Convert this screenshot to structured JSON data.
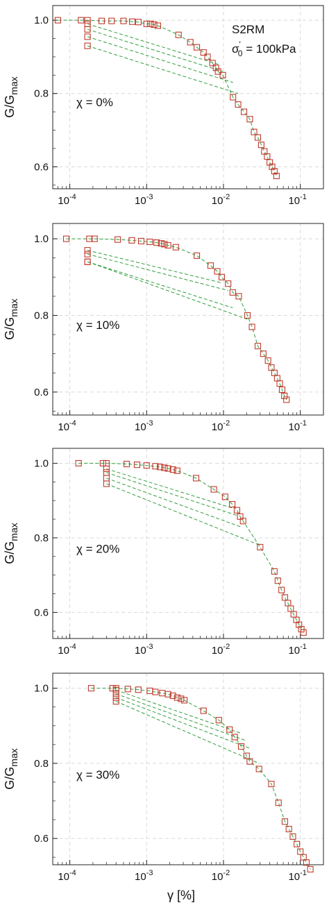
{
  "chart_data": [
    {
      "type": "scatter",
      "ylabel": "G/G",
      "ylabel_sub": "max",
      "xscale": "log",
      "xlim": [
        6e-05,
        0.2
      ],
      "ylim": [
        0.54,
        1.04
      ],
      "xticks": [
        "10",
        "10",
        "10",
        "10"
      ],
      "xtick_exps": [
        "-4",
        "-3",
        "-2",
        "-1"
      ],
      "yticks": [
        "0.6",
        "0.8",
        "1.0"
      ],
      "annotation": "χ = 0%",
      "label_top": "S2RM",
      "label_stress": "σ",
      "label_stress_sup": "'",
      "label_stress_sub": "0",
      "label_stress_val": " = 100kPa",
      "grid": true,
      "colors": {
        "marker": "#c0392b",
        "line": "#2e9e3a"
      },
      "series": [
        {
          "x": [
            7e-05,
            0.00014,
            0.00017,
            0.00026,
            0.00035,
            0.0005,
            0.00065,
            0.00078,
            0.001,
            0.00112,
            0.00125,
            0.0014,
            0.0026,
            0.0037,
            0.0045,
            0.0055,
            0.0062,
            0.0072,
            0.008,
            0.0085,
            0.0098,
            0.0133,
            0.0155,
            0.0185,
            0.022,
            0.025,
            0.028,
            0.031,
            0.034,
            0.037,
            0.04,
            0.043,
            0.046,
            0.049
          ]
        },
        {
          "y": [
            1.0,
            1.0,
            1.0,
            0.998,
            0.998,
            0.998,
            0.996,
            0.995,
            0.99,
            0.99,
            0.988,
            0.985,
            0.96,
            0.94,
            0.926,
            0.912,
            0.9,
            0.883,
            0.87,
            0.86,
            0.85,
            0.79,
            0.77,
            0.75,
            0.73,
            0.695,
            0.68,
            0.66,
            0.642,
            0.628,
            0.612,
            0.6,
            0.588,
            0.575
          ]
        },
        {
          "x": [
            0.00017,
            0.0085,
            0.00017,
            0.0098,
            0.00017,
            0.0133,
            0.00017,
            0.0155
          ],
          "y": [
            0.99,
            0.88,
            0.975,
            0.86,
            0.955,
            0.83,
            0.93,
            0.8
          ]
        }
      ]
    },
    {
      "type": "scatter",
      "ylabel": "G/G",
      "ylabel_sub": "max",
      "xscale": "log",
      "xlim": [
        6e-05,
        0.2
      ],
      "ylim": [
        0.54,
        1.04
      ],
      "xticks": [
        "10",
        "10",
        "10",
        "10"
      ],
      "xtick_exps": [
        "-4",
        "-3",
        "-2",
        "-1"
      ],
      "yticks": [
        "0.6",
        "0.8",
        "1.0"
      ],
      "annotation": "χ = 10%",
      "grid": true,
      "colors": {
        "marker": "#c0392b",
        "line": "#2e9e3a"
      },
      "series": [
        {
          "x": [
            9e-05,
            0.00018,
            0.00021,
            0.00042,
            0.00064,
            0.00085,
            0.0011,
            0.00135,
            0.00155,
            0.0017,
            0.0019,
            0.0024,
            0.0045,
            0.0068,
            0.0083,
            0.0095,
            0.0115,
            0.0132,
            0.0158,
            0.0205,
            0.0235,
            0.028,
            0.033,
            0.038,
            0.042,
            0.046,
            0.05,
            0.054,
            0.058,
            0.062,
            0.066
          ],
          "y": [
            1.0,
            1.0,
            1.0,
            0.998,
            0.996,
            0.994,
            0.992,
            0.99,
            0.988,
            0.986,
            0.983,
            0.978,
            0.956,
            0.93,
            0.915,
            0.9,
            0.883,
            0.86,
            0.85,
            0.8,
            0.77,
            0.72,
            0.7,
            0.682,
            0.664,
            0.65,
            0.636,
            0.622,
            0.606,
            0.59,
            0.58
          ]
        },
        {
          "x": [
            0.00017,
            0.0095,
            0.00017,
            0.0115,
            0.00017,
            0.0132,
            0.00017,
            0.0205
          ],
          "y": [
            0.97,
            0.885,
            0.96,
            0.865,
            0.94,
            0.82,
            0.94,
            0.79
          ]
        }
      ]
    },
    {
      "type": "scatter",
      "ylabel": "G/G",
      "ylabel_sub": "max",
      "xscale": "log",
      "xlim": [
        6e-05,
        0.2
      ],
      "ylim": [
        0.53,
        1.04
      ],
      "xticks": [
        "10",
        "10",
        "10",
        "10"
      ],
      "xtick_exps": [
        "-4",
        "-3",
        "-2",
        "-1"
      ],
      "yticks": [
        "0.6",
        "0.8",
        "1.0"
      ],
      "annotation": "χ = 20%",
      "grid": true,
      "colors": {
        "marker": "#c0392b",
        "line": "#2e9e3a"
      },
      "series": [
        {
          "x": [
            0.00013,
            0.00027,
            0.0003,
            0.00055,
            0.00075,
            0.001,
            0.0013,
            0.0015,
            0.0017,
            0.0019,
            0.0022,
            0.0025,
            0.0044,
            0.0075,
            0.0105,
            0.013,
            0.015,
            0.0165,
            0.018,
            0.03,
            0.046,
            0.051,
            0.057,
            0.063,
            0.069,
            0.075,
            0.082,
            0.089,
            0.096,
            0.103,
            0.11
          ],
          "y": [
            1.0,
            1.0,
            1.0,
            0.998,
            0.996,
            0.994,
            0.992,
            0.99,
            0.988,
            0.986,
            0.983,
            0.98,
            0.96,
            0.93,
            0.91,
            0.89,
            0.874,
            0.857,
            0.845,
            0.775,
            0.71,
            0.685,
            0.66,
            0.64,
            0.625,
            0.61,
            0.595,
            0.58,
            0.567,
            0.555,
            0.546
          ]
        },
        {
          "x": [
            0.0003,
            0.013,
            0.0003,
            0.015,
            0.0003,
            0.0165,
            0.0003,
            0.03
          ],
          "y": [
            0.985,
            0.88,
            0.975,
            0.86,
            0.96,
            0.83,
            0.945,
            0.78
          ]
        }
      ]
    },
    {
      "type": "scatter",
      "ylabel": "G/G",
      "ylabel_sub": "max",
      "xlabel": "γ [%]",
      "xscale": "log",
      "xlim": [
        6e-05,
        0.2
      ],
      "ylim": [
        0.53,
        1.04
      ],
      "xticks": [
        "10",
        "10",
        "10",
        "10"
      ],
      "xtick_exps": [
        "-4",
        "-3",
        "-2",
        "-1"
      ],
      "yticks": [
        "0.6",
        "0.8",
        "1.0"
      ],
      "annotation": "χ = 30%",
      "grid": true,
      "colors": {
        "marker": "#c0392b",
        "line": "#2e9e3a"
      },
      "series": [
        {
          "x": [
            0.00019,
            0.00036,
            0.0004,
            0.00057,
            0.00078,
            0.0011,
            0.0013,
            0.0016,
            0.0019,
            0.0022,
            0.0025,
            0.0028,
            0.0031,
            0.0055,
            0.0087,
            0.012,
            0.014,
            0.017,
            0.02,
            0.022,
            0.029,
            0.042,
            0.052,
            0.063,
            0.071,
            0.08,
            0.09,
            0.1,
            0.11,
            0.12,
            0.135
          ],
          "y": [
            1.0,
            1.0,
            1.0,
            0.998,
            0.996,
            0.993,
            0.99,
            0.987,
            0.984,
            0.98,
            0.975,
            0.972,
            0.968,
            0.94,
            0.915,
            0.89,
            0.87,
            0.845,
            0.82,
            0.805,
            0.785,
            0.745,
            0.695,
            0.645,
            0.625,
            0.605,
            0.585,
            0.565,
            0.55,
            0.536,
            0.518
          ]
        },
        {
          "x": [
            0.0004,
            0.017,
            0.0004,
            0.02,
            0.0004,
            0.022,
            0.0004,
            0.029
          ],
          "y": [
            0.995,
            0.88,
            0.985,
            0.86,
            0.975,
            0.84,
            0.965,
            0.8
          ]
        }
      ]
    }
  ]
}
